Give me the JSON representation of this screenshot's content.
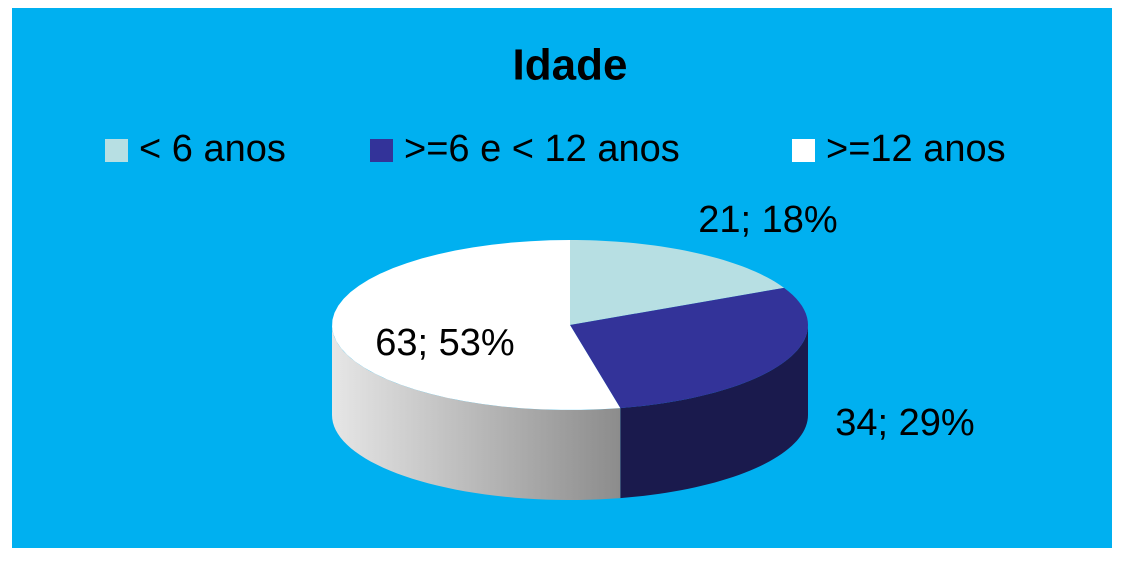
{
  "chart_data": {
    "type": "pie",
    "title": "Idade",
    "categories": [
      "< 6 anos",
      ">=6 e < 12 anos",
      ">=12 anos"
    ],
    "values": [
      21,
      34,
      63
    ],
    "value_labels": [
      "21; 18%",
      "34; 29%",
      "63; 53%"
    ],
    "colors": [
      "#b7dfe3",
      "#333399",
      "#ffffff"
    ],
    "legend": "top"
  }
}
